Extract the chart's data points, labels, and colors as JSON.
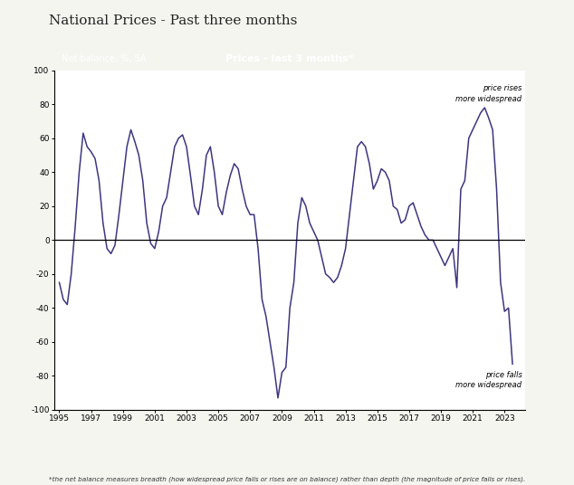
{
  "title": "National Prices - Past three months",
  "header_left": "Net balance, %, SA",
  "header_center": "Prices - last 3 months*",
  "footnote": "*the net balance measures breadth (how widespread price falls or rises are on balance) rather than depth (the magnitude of price falls or rises).",
  "annotation_top": "price rises\nmore widespread",
  "annotation_bottom": "price falls\nmore widespread",
  "ylim": [
    -100,
    100
  ],
  "yticks": [
    -100,
    -80,
    -60,
    -40,
    -20,
    0,
    20,
    40,
    60,
    80,
    100
  ],
  "xticks": [
    1995,
    1997,
    1999,
    2001,
    2003,
    2005,
    2007,
    2009,
    2011,
    2013,
    2015,
    2017,
    2019,
    2021,
    2023
  ],
  "line_color": "#3d3580",
  "header_bg": "#1a1a1a",
  "header_text_color": "#ffffff",
  "background_color": "#f5f5f0",
  "zero_line_color": "#000000",
  "data": [
    [
      1995.0,
      -25
    ],
    [
      1995.25,
      -35
    ],
    [
      1995.5,
      -38
    ],
    [
      1995.75,
      -20
    ],
    [
      1996.0,
      8
    ],
    [
      1996.25,
      40
    ],
    [
      1996.5,
      63
    ],
    [
      1996.75,
      55
    ],
    [
      1997.0,
      52
    ],
    [
      1997.25,
      48
    ],
    [
      1997.5,
      35
    ],
    [
      1997.75,
      10
    ],
    [
      1998.0,
      -5
    ],
    [
      1998.25,
      -8
    ],
    [
      1998.5,
      -3
    ],
    [
      1998.75,
      15
    ],
    [
      1999.0,
      35
    ],
    [
      1999.25,
      55
    ],
    [
      1999.5,
      65
    ],
    [
      1999.75,
      58
    ],
    [
      2000.0,
      50
    ],
    [
      2000.25,
      35
    ],
    [
      2000.5,
      10
    ],
    [
      2000.75,
      -2
    ],
    [
      2001.0,
      -5
    ],
    [
      2001.25,
      5
    ],
    [
      2001.5,
      20
    ],
    [
      2001.75,
      25
    ],
    [
      2002.0,
      40
    ],
    [
      2002.25,
      55
    ],
    [
      2002.5,
      60
    ],
    [
      2002.75,
      62
    ],
    [
      2003.0,
      55
    ],
    [
      2003.25,
      38
    ],
    [
      2003.5,
      20
    ],
    [
      2003.75,
      15
    ],
    [
      2004.0,
      30
    ],
    [
      2004.25,
      50
    ],
    [
      2004.5,
      55
    ],
    [
      2004.75,
      40
    ],
    [
      2005.0,
      20
    ],
    [
      2005.25,
      15
    ],
    [
      2005.5,
      28
    ],
    [
      2005.75,
      38
    ],
    [
      2006.0,
      45
    ],
    [
      2006.25,
      42
    ],
    [
      2006.5,
      30
    ],
    [
      2006.75,
      20
    ],
    [
      2007.0,
      15
    ],
    [
      2007.25,
      15
    ],
    [
      2007.5,
      -5
    ],
    [
      2007.75,
      -35
    ],
    [
      2008.0,
      -45
    ],
    [
      2008.25,
      -60
    ],
    [
      2008.5,
      -75
    ],
    [
      2008.75,
      -93
    ],
    [
      2009.0,
      -78
    ],
    [
      2009.25,
      -75
    ],
    [
      2009.5,
      -40
    ],
    [
      2009.75,
      -25
    ],
    [
      2010.0,
      10
    ],
    [
      2010.25,
      25
    ],
    [
      2010.5,
      20
    ],
    [
      2010.75,
      10
    ],
    [
      2011.0,
      5
    ],
    [
      2011.25,
      0
    ],
    [
      2011.5,
      -10
    ],
    [
      2011.75,
      -20
    ],
    [
      2012.0,
      -22
    ],
    [
      2012.25,
      -25
    ],
    [
      2012.5,
      -22
    ],
    [
      2012.75,
      -15
    ],
    [
      2013.0,
      -5
    ],
    [
      2013.25,
      15
    ],
    [
      2013.5,
      35
    ],
    [
      2013.75,
      55
    ],
    [
      2014.0,
      58
    ],
    [
      2014.25,
      55
    ],
    [
      2014.5,
      45
    ],
    [
      2014.75,
      30
    ],
    [
      2015.0,
      35
    ],
    [
      2015.25,
      42
    ],
    [
      2015.5,
      40
    ],
    [
      2015.75,
      35
    ],
    [
      2016.0,
      20
    ],
    [
      2016.25,
      18
    ],
    [
      2016.5,
      10
    ],
    [
      2016.75,
      12
    ],
    [
      2017.0,
      20
    ],
    [
      2017.25,
      22
    ],
    [
      2017.5,
      15
    ],
    [
      2017.75,
      8
    ],
    [
      2018.0,
      3
    ],
    [
      2018.25,
      0
    ],
    [
      2018.5,
      0
    ],
    [
      2018.75,
      -5
    ],
    [
      2019.0,
      -10
    ],
    [
      2019.25,
      -15
    ],
    [
      2019.5,
      -10
    ],
    [
      2019.75,
      -5
    ],
    [
      2020.0,
      -28
    ],
    [
      2020.25,
      30
    ],
    [
      2020.5,
      35
    ],
    [
      2020.75,
      60
    ],
    [
      2021.0,
      65
    ],
    [
      2021.25,
      70
    ],
    [
      2021.5,
      75
    ],
    [
      2021.75,
      78
    ],
    [
      2022.0,
      72
    ],
    [
      2022.25,
      65
    ],
    [
      2022.5,
      30
    ],
    [
      2022.75,
      -25
    ],
    [
      2023.0,
      -42
    ],
    [
      2023.25,
      -40
    ],
    [
      2023.5,
      -73
    ]
  ]
}
